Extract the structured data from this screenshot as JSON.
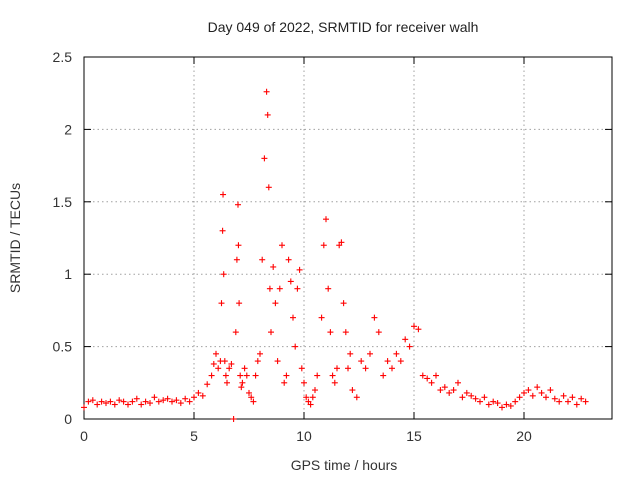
{
  "chart_data": {
    "type": "scatter",
    "title": "Day 049 of 2022, SRMTID for receiver walh",
    "xlabel": "GPS time / hours",
    "ylabel": "SRMTID / TECUs",
    "xlim": [
      0,
      24
    ],
    "ylim": [
      0,
      2.5
    ],
    "x_ticks": [
      0,
      5,
      10,
      15,
      20
    ],
    "x_tick_labels": [
      "0",
      "5",
      "10",
      "15",
      "20"
    ],
    "y_ticks": [
      0,
      0.5,
      1,
      1.5,
      2,
      2.5
    ],
    "y_tick_labels": [
      "0",
      "0.5",
      "1",
      "1.5",
      "2",
      "2.5"
    ],
    "grid": true,
    "marker": "+",
    "series": [
      {
        "name": "SRMTID",
        "color": "#ff0000",
        "x": [
          0.0,
          0.2,
          0.4,
          0.6,
          0.8,
          1.0,
          1.2,
          1.4,
          1.6,
          1.8,
          2.0,
          2.2,
          2.4,
          2.6,
          2.8,
          3.0,
          3.2,
          3.4,
          3.6,
          3.8,
          4.0,
          4.2,
          4.4,
          4.6,
          4.8,
          5.0,
          5.2,
          5.4,
          5.6,
          5.8,
          5.9,
          6.0,
          6.1,
          6.2,
          6.25,
          6.3,
          6.32,
          6.35,
          6.4,
          6.45,
          6.5,
          6.6,
          6.7,
          6.8,
          6.9,
          6.95,
          7.0,
          7.02,
          7.05,
          7.1,
          7.15,
          7.2,
          7.3,
          7.4,
          7.5,
          7.6,
          7.7,
          7.8,
          7.9,
          8.0,
          8.1,
          8.2,
          8.3,
          8.35,
          8.4,
          8.45,
          8.5,
          8.6,
          8.7,
          8.8,
          8.9,
          9.0,
          9.1,
          9.2,
          9.3,
          9.4,
          9.5,
          9.6,
          9.7,
          9.8,
          9.9,
          10.0,
          10.1,
          10.2,
          10.3,
          10.4,
          10.5,
          10.6,
          10.8,
          10.9,
          11.0,
          11.1,
          11.2,
          11.3,
          11.4,
          11.5,
          11.6,
          11.7,
          11.8,
          11.9,
          12.0,
          12.1,
          12.2,
          12.4,
          12.6,
          12.8,
          13.0,
          13.2,
          13.4,
          13.6,
          13.8,
          14.0,
          14.2,
          14.4,
          14.6,
          14.8,
          15.0,
          15.2,
          15.4,
          15.6,
          15.8,
          16.0,
          16.2,
          16.4,
          16.6,
          16.8,
          17.0,
          17.2,
          17.4,
          17.6,
          17.8,
          18.0,
          18.2,
          18.4,
          18.6,
          18.8,
          19.0,
          19.2,
          19.4,
          19.6,
          19.8,
          20.0,
          20.2,
          20.4,
          20.6,
          20.8,
          21.0,
          21.2,
          21.4,
          21.6,
          21.8,
          22.0,
          22.2,
          22.4,
          22.6,
          22.8
        ],
        "y": [
          0.08,
          0.12,
          0.13,
          0.1,
          0.12,
          0.11,
          0.12,
          0.1,
          0.13,
          0.12,
          0.1,
          0.12,
          0.14,
          0.1,
          0.12,
          0.11,
          0.15,
          0.12,
          0.13,
          0.14,
          0.12,
          0.13,
          0.11,
          0.14,
          0.12,
          0.15,
          0.18,
          0.16,
          0.24,
          0.3,
          0.38,
          0.45,
          0.35,
          0.4,
          0.8,
          1.3,
          1.55,
          1.0,
          0.4,
          0.3,
          0.25,
          0.35,
          0.38,
          0.0,
          0.6,
          1.1,
          1.48,
          1.2,
          0.8,
          0.3,
          0.22,
          0.25,
          0.35,
          0.3,
          0.18,
          0.15,
          0.12,
          0.3,
          0.4,
          0.45,
          1.1,
          1.8,
          2.26,
          2.1,
          1.6,
          0.9,
          0.6,
          1.05,
          0.8,
          0.4,
          0.9,
          1.2,
          0.25,
          0.3,
          1.1,
          0.95,
          0.7,
          0.5,
          0.9,
          1.03,
          0.35,
          0.25,
          0.15,
          0.12,
          0.1,
          0.15,
          0.2,
          0.3,
          0.7,
          1.2,
          1.38,
          0.9,
          0.6,
          0.3,
          0.25,
          0.35,
          1.2,
          1.22,
          0.8,
          0.6,
          0.35,
          0.45,
          0.2,
          0.15,
          0.4,
          0.35,
          0.45,
          0.7,
          0.6,
          0.3,
          0.4,
          0.35,
          0.45,
          0.4,
          0.55,
          0.5,
          0.64,
          0.62,
          0.3,
          0.28,
          0.25,
          0.3,
          0.2,
          0.22,
          0.18,
          0.2,
          0.25,
          0.15,
          0.18,
          0.16,
          0.14,
          0.12,
          0.15,
          0.1,
          0.12,
          0.11,
          0.08,
          0.1,
          0.09,
          0.12,
          0.15,
          0.18,
          0.2,
          0.16,
          0.22,
          0.18,
          0.15,
          0.2,
          0.14,
          0.12,
          0.16,
          0.12,
          0.15,
          0.1,
          0.14,
          0.12
        ]
      }
    ]
  }
}
